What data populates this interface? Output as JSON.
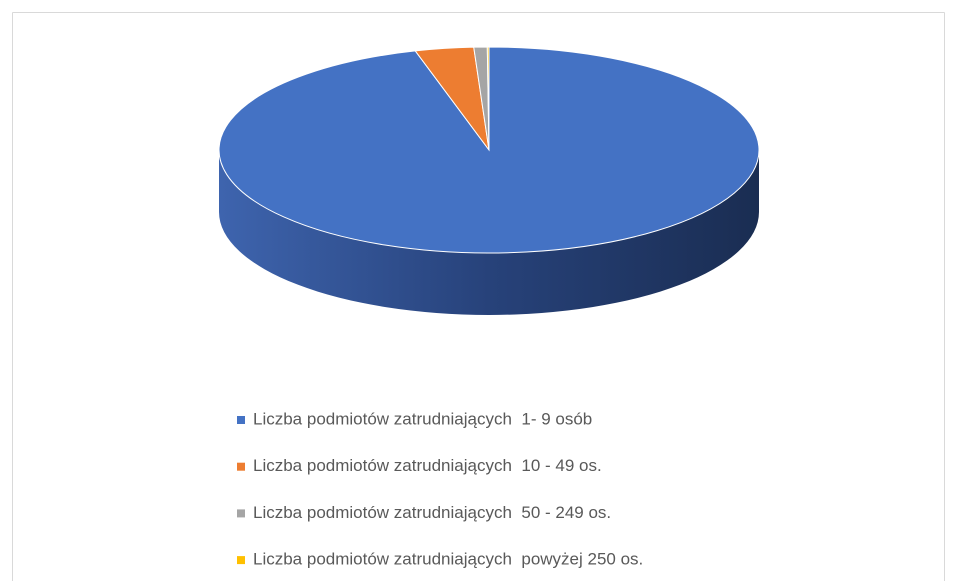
{
  "chart_data": {
    "type": "pie3d",
    "categories": [
      "Liczba podmiotów zatrudniających  1- 9 osób",
      "Liczba podmiotów zatrudniających  10 - 49 os.",
      "Liczba podmiotów zatrudniających  50 - 249 os.",
      "Liczba podmiotów zatrudniających  powyżej 250 os."
    ],
    "values": [
      95.6,
      3.5,
      0.8,
      0.1
    ],
    "colors": [
      "#4472c4",
      "#ed7d31",
      "#a5a5a5",
      "#ffc000"
    ],
    "legend": "bottom"
  }
}
